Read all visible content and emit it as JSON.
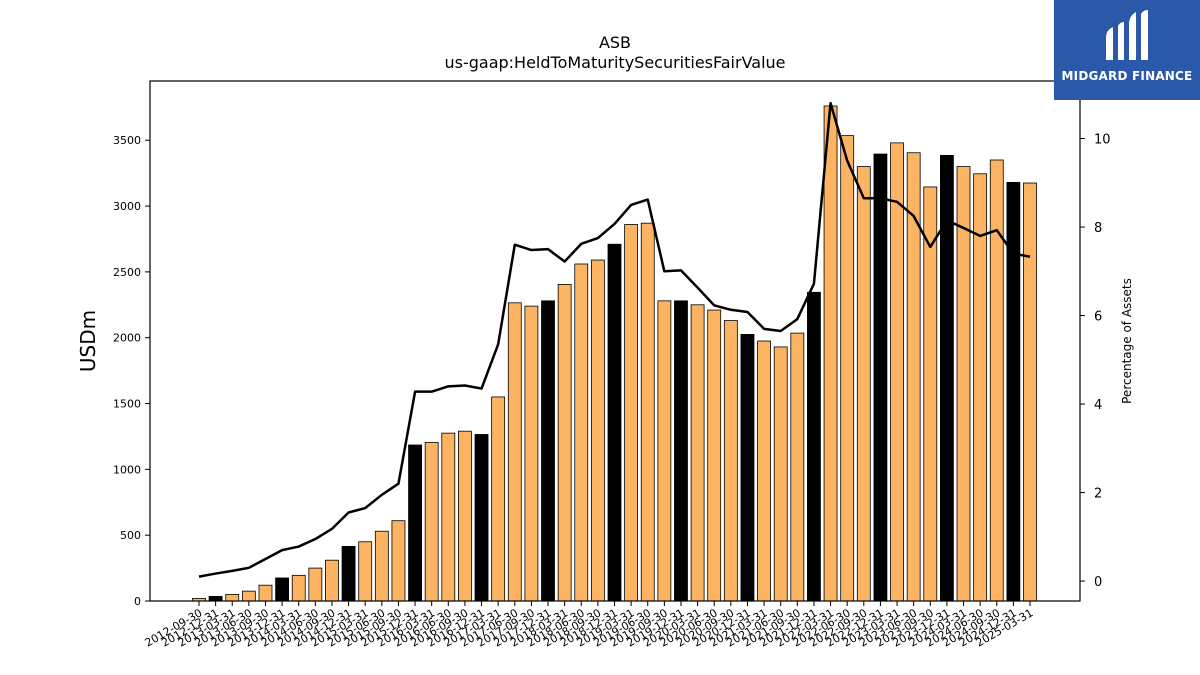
{
  "chart_data": {
    "type": "bar",
    "title": "ASB",
    "subtitle": "us-gaap:HeldToMaturitySecuritiesFairValue",
    "ylabel": "USDm",
    "y2label": "Percentage of Assets",
    "ylim": [
      0,
      3950
    ],
    "y2lim": [
      -0.45,
      11.3
    ],
    "yticks": [
      0,
      500,
      1000,
      1500,
      2000,
      2500,
      3000,
      3500
    ],
    "y2ticks": [
      0,
      2,
      4,
      6,
      8,
      10
    ],
    "bar_color": "#fdb462",
    "highlight_color": "#000000",
    "line_color": "#000000",
    "categories": [
      "2012-09-30",
      "2012-12-31",
      "2013-03-31",
      "2013-06-30",
      "2013-09-30",
      "2013-12-31",
      "2014-03-31",
      "2014-06-30",
      "2014-09-30",
      "2014-12-31",
      "2015-03-31",
      "2015-06-30",
      "2015-09-30",
      "2015-12-31",
      "2016-03-31",
      "2016-06-30",
      "2016-09-30",
      "2016-12-31",
      "2017-03-31",
      "2017-06-30",
      "2017-09-30",
      "2017-12-31",
      "2018-03-31",
      "2018-06-30",
      "2018-09-30",
      "2018-12-31",
      "2019-03-31",
      "2019-06-30",
      "2019-09-30",
      "2019-12-31",
      "2020-03-31",
      "2020-06-30",
      "2020-09-30",
      "2020-12-31",
      "2021-03-31",
      "2021-06-30",
      "2021-09-30",
      "2021-12-31",
      "2022-03-31",
      "2022-06-30",
      "2022-09-30",
      "2022-12-31",
      "2023-03-31",
      "2023-06-30",
      "2023-09-30",
      "2023-12-31",
      "2024-03-31",
      "2024-06-30",
      "2024-09-30",
      "2024-12-31",
      "2025-03-31"
    ],
    "values": [
      20,
      35,
      50,
      75,
      120,
      175,
      195,
      250,
      310,
      415,
      450,
      530,
      610,
      1185,
      1205,
      1275,
      1290,
      1265,
      1550,
      2265,
      2240,
      2280,
      2405,
      2560,
      2590,
      2710,
      2860,
      2870,
      2280,
      2280,
      2250,
      2210,
      2130,
      2025,
      1975,
      1930,
      2035,
      2345,
      3760,
      3535,
      3300,
      3395,
      3480,
      3405,
      3145,
      3385,
      3300,
      3245,
      3350,
      3180,
      3175
    ],
    "highlight": [
      false,
      true,
      false,
      false,
      false,
      true,
      false,
      false,
      false,
      true,
      false,
      false,
      false,
      true,
      false,
      false,
      false,
      true,
      false,
      false,
      false,
      true,
      false,
      false,
      false,
      true,
      false,
      false,
      false,
      true,
      false,
      false,
      false,
      true,
      false,
      false,
      false,
      true,
      false,
      false,
      false,
      true,
      false,
      false,
      false,
      true,
      false,
      false,
      false,
      true,
      false
    ],
    "pct_assets": [
      0.1,
      0.17,
      0.23,
      0.3,
      0.5,
      0.7,
      0.78,
      0.95,
      1.18,
      1.55,
      1.65,
      1.95,
      2.2,
      4.28,
      4.28,
      4.4,
      4.42,
      4.35,
      5.35,
      7.6,
      7.48,
      7.5,
      7.22,
      7.62,
      7.75,
      8.07,
      8.5,
      8.62,
      7.0,
      7.02,
      6.63,
      6.23,
      6.13,
      6.08,
      5.7,
      5.65,
      5.92,
      6.72,
      10.8,
      9.5,
      8.65,
      8.65,
      8.57,
      8.25,
      7.55,
      8.15,
      7.98,
      7.8,
      7.93,
      7.4,
      7.33
    ],
    "grid": false,
    "legend": "none"
  },
  "brand": {
    "name": "MIDGARD FINANCE",
    "color": "#2b58a8",
    "icon": "midgard-m-logo-icon"
  }
}
